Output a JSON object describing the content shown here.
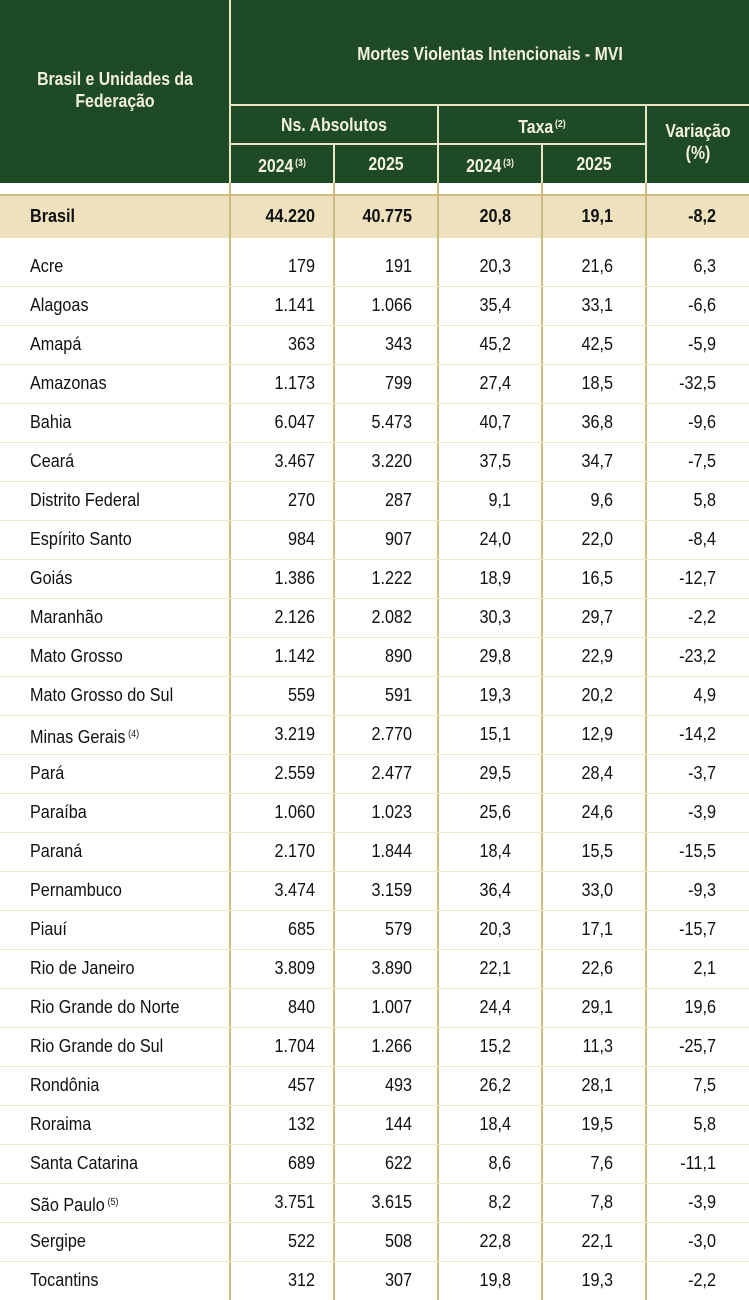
{
  "header": {
    "region_label": "Brasil e Unidades da Federação",
    "indicator_title": "Mortes Violentas Intencionais - MVI",
    "absolute_label": "Ns. Absolutos",
    "rate_label": "Taxa",
    "rate_note": "(2)",
    "variation_label_line1": "Variação",
    "variation_label_line2": "(%)",
    "col_2024_abs": "2024",
    "col_2024_abs_note": "(3)",
    "col_2025_abs": "2025",
    "col_2024_rate": "2024",
    "col_2024_rate_note": "(3)",
    "col_2025_rate": "2025"
  },
  "colors": {
    "header_bg": "#1e4a26",
    "header_text": "#f3f1dc",
    "highlight_row": "#ede2bd",
    "gridlines": "#cdbb7f"
  },
  "total_row": {
    "name": "Brasil",
    "abs_2024": "44.220",
    "abs_2025": "40.775",
    "rate_2024": "20,8",
    "rate_2025": "19,1",
    "variation": "-8,2"
  },
  "rows": [
    {
      "name": "Acre",
      "note": "",
      "abs_2024": "179",
      "abs_2025": "191",
      "rate_2024": "20,3",
      "rate_2025": "21,6",
      "variation": "6,3"
    },
    {
      "name": "Alagoas",
      "note": "",
      "abs_2024": "1.141",
      "abs_2025": "1.066",
      "rate_2024": "35,4",
      "rate_2025": "33,1",
      "variation": "-6,6"
    },
    {
      "name": "Amapá",
      "note": "",
      "abs_2024": "363",
      "abs_2025": "343",
      "rate_2024": "45,2",
      "rate_2025": "42,5",
      "variation": "-5,9"
    },
    {
      "name": "Amazonas",
      "note": "",
      "abs_2024": "1.173",
      "abs_2025": "799",
      "rate_2024": "27,4",
      "rate_2025": "18,5",
      "variation": "-32,5"
    },
    {
      "name": "Bahia",
      "note": "",
      "abs_2024": "6.047",
      "abs_2025": "5.473",
      "rate_2024": "40,7",
      "rate_2025": "36,8",
      "variation": "-9,6"
    },
    {
      "name": "Ceará",
      "note": "",
      "abs_2024": "3.467",
      "abs_2025": "3.220",
      "rate_2024": "37,5",
      "rate_2025": "34,7",
      "variation": "-7,5"
    },
    {
      "name": "Distrito Federal",
      "note": "",
      "abs_2024": "270",
      "abs_2025": "287",
      "rate_2024": "9,1",
      "rate_2025": "9,6",
      "variation": "5,8"
    },
    {
      "name": "Espírito Santo",
      "note": "",
      "abs_2024": "984",
      "abs_2025": "907",
      "rate_2024": "24,0",
      "rate_2025": "22,0",
      "variation": "-8,4"
    },
    {
      "name": "Goiás",
      "note": "",
      "abs_2024": "1.386",
      "abs_2025": "1.222",
      "rate_2024": "18,9",
      "rate_2025": "16,5",
      "variation": "-12,7"
    },
    {
      "name": "Maranhão",
      "note": "",
      "abs_2024": "2.126",
      "abs_2025": "2.082",
      "rate_2024": "30,3",
      "rate_2025": "29,7",
      "variation": "-2,2"
    },
    {
      "name": "Mato Grosso",
      "note": "",
      "abs_2024": "1.142",
      "abs_2025": "890",
      "rate_2024": "29,8",
      "rate_2025": "22,9",
      "variation": "-23,2"
    },
    {
      "name": "Mato Grosso do Sul",
      "note": "",
      "abs_2024": "559",
      "abs_2025": "591",
      "rate_2024": "19,3",
      "rate_2025": "20,2",
      "variation": "4,9"
    },
    {
      "name": "Minas Gerais",
      "note": "(4)",
      "abs_2024": "3.219",
      "abs_2025": "2.770",
      "rate_2024": "15,1",
      "rate_2025": "12,9",
      "variation": "-14,2"
    },
    {
      "name": "Pará",
      "note": "",
      "abs_2024": "2.559",
      "abs_2025": "2.477",
      "rate_2024": "29,5",
      "rate_2025": "28,4",
      "variation": "-3,7"
    },
    {
      "name": "Paraíba",
      "note": "",
      "abs_2024": "1.060",
      "abs_2025": "1.023",
      "rate_2024": "25,6",
      "rate_2025": "24,6",
      "variation": "-3,9"
    },
    {
      "name": "Paraná",
      "note": "",
      "abs_2024": "2.170",
      "abs_2025": "1.844",
      "rate_2024": "18,4",
      "rate_2025": "15,5",
      "variation": "-15,5"
    },
    {
      "name": "Pernambuco",
      "note": "",
      "abs_2024": "3.474",
      "abs_2025": "3.159",
      "rate_2024": "36,4",
      "rate_2025": "33,0",
      "variation": "-9,3"
    },
    {
      "name": "Piauí",
      "note": "",
      "abs_2024": "685",
      "abs_2025": "579",
      "rate_2024": "20,3",
      "rate_2025": "17,1",
      "variation": "-15,7"
    },
    {
      "name": "Rio de Janeiro",
      "note": "",
      "abs_2024": "3.809",
      "abs_2025": "3.890",
      "rate_2024": "22,1",
      "rate_2025": "22,6",
      "variation": "2,1"
    },
    {
      "name": "Rio Grande do Norte",
      "note": "",
      "abs_2024": "840",
      "abs_2025": "1.007",
      "rate_2024": "24,4",
      "rate_2025": "29,1",
      "variation": "19,6"
    },
    {
      "name": "Rio Grande do Sul",
      "note": "",
      "abs_2024": "1.704",
      "abs_2025": "1.266",
      "rate_2024": "15,2",
      "rate_2025": "11,3",
      "variation": "-25,7"
    },
    {
      "name": "Rondônia",
      "note": "",
      "abs_2024": "457",
      "abs_2025": "493",
      "rate_2024": "26,2",
      "rate_2025": "28,1",
      "variation": "7,5"
    },
    {
      "name": "Roraima",
      "note": "",
      "abs_2024": "132",
      "abs_2025": "144",
      "rate_2024": "18,4",
      "rate_2025": "19,5",
      "variation": "5,8"
    },
    {
      "name": "Santa Catarina",
      "note": "",
      "abs_2024": "689",
      "abs_2025": "622",
      "rate_2024": "8,6",
      "rate_2025": "7,6",
      "variation": "-11,1"
    },
    {
      "name": "São Paulo",
      "note": "(5)",
      "abs_2024": "3.751",
      "abs_2025": "3.615",
      "rate_2024": "8,2",
      "rate_2025": "7,8",
      "variation": "-3,9"
    },
    {
      "name": "Sergipe",
      "note": "",
      "abs_2024": "522",
      "abs_2025": "508",
      "rate_2024": "22,8",
      "rate_2025": "22,1",
      "variation": "-3,0"
    },
    {
      "name": "Tocantins",
      "note": "",
      "abs_2024": "312",
      "abs_2025": "307",
      "rate_2024": "19,8",
      "rate_2025": "19,3",
      "variation": "-2,2"
    }
  ]
}
